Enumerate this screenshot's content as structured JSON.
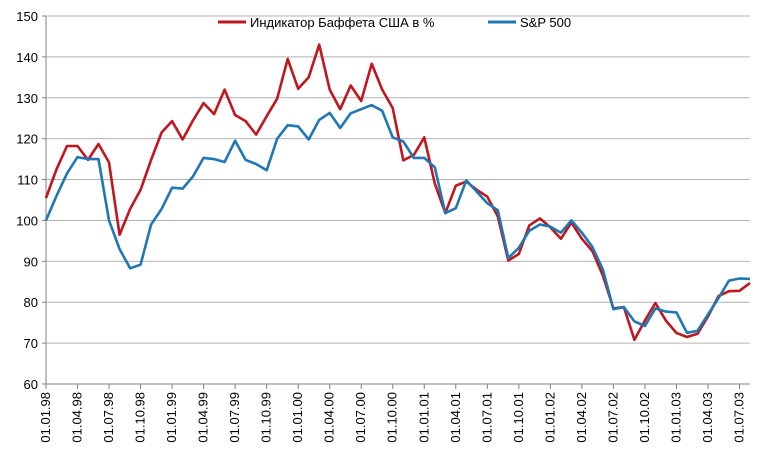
{
  "chart_data": {
    "type": "line",
    "title": "",
    "xlabel": "",
    "ylabel": "",
    "ylim": [
      60,
      150
    ],
    "y_ticks": [
      60,
      70,
      80,
      90,
      100,
      110,
      120,
      130,
      140,
      150
    ],
    "x_tick_labels": [
      "01.01.98",
      "01.04.98",
      "01.07.98",
      "01.10.98",
      "01.01.99",
      "01.04.99",
      "01.07.99",
      "01.10.99",
      "01.01.00",
      "01.04.00",
      "01.07.00",
      "01.10.00",
      "01.01.01",
      "01.04.01",
      "01.07.01",
      "01.10.01",
      "01.01.02",
      "01.04.02",
      "01.07.02",
      "01.10.02",
      "01.01.03",
      "01.04.03",
      "01.07.03"
    ],
    "grid": "horizontal",
    "legend": "top-center",
    "series": [
      {
        "name": "Индикатор Баффета США в %",
        "color": "#c0161d",
        "values": [
          105.5,
          112.5,
          118.2,
          118.2,
          114.8,
          118.7,
          114.2,
          96.5,
          102.8,
          107.5,
          114.8,
          121.5,
          124.3,
          119.8,
          124.5,
          128.7,
          126.0,
          132.0,
          125.8,
          124.3,
          121.0,
          125.5,
          129.8,
          139.5,
          132.2,
          135.0,
          143.0,
          132.0,
          127.2,
          133.0,
          129.2,
          138.3,
          132.0,
          127.5,
          114.7,
          116.0,
          120.3,
          109.0,
          101.8,
          108.5,
          109.5,
          107.5,
          105.8,
          101.0,
          90.2,
          91.8,
          98.8,
          100.5,
          98.3,
          95.5,
          99.5,
          95.5,
          92.5,
          86.5,
          78.5,
          78.8,
          70.8,
          75.5,
          79.8,
          75.5,
          72.5,
          71.5,
          72.3,
          76.5,
          81.5,
          82.7,
          82.8,
          84.7
        ]
      },
      {
        "name": "S&P 500",
        "color": "#1f77b4",
        "values": [
          100.0,
          106.0,
          111.5,
          115.5,
          115.0,
          115.0,
          100.0,
          93.0,
          88.3,
          89.2,
          99.0,
          102.8,
          108.0,
          107.8,
          110.8,
          115.3,
          115.0,
          114.3,
          119.5,
          114.8,
          113.8,
          112.3,
          120.0,
          123.3,
          123.0,
          119.8,
          124.6,
          126.3,
          122.6,
          126.2,
          127.2,
          128.2,
          126.8,
          120.3,
          119.3,
          115.3,
          115.3,
          113.0,
          101.8,
          103.0,
          109.8,
          107.0,
          104.2,
          102.5,
          90.8,
          93.3,
          97.5,
          99.0,
          98.5,
          97.0,
          100.0,
          97.0,
          93.5,
          88.0,
          78.3,
          78.8,
          75.3,
          74.2,
          78.5,
          77.7,
          77.5,
          72.5,
          73.0,
          77.0,
          81.0,
          85.3,
          85.8,
          85.7
        ]
      }
    ]
  }
}
